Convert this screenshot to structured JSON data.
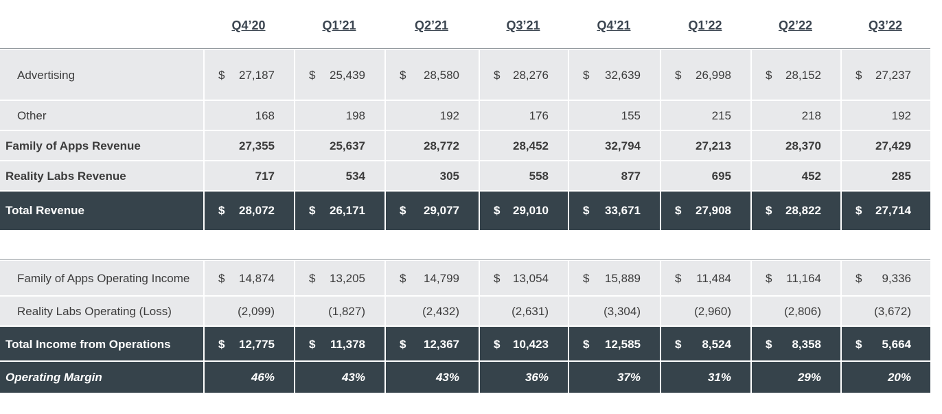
{
  "quarters": [
    "Q4’20",
    "Q1’21",
    "Q2’21",
    "Q3’21",
    "Q4’21",
    "Q1’22",
    "Q2’22",
    "Q3’22"
  ],
  "currency_symbol": "$",
  "revenue_table": {
    "rows": [
      {
        "label": "Advertising",
        "style": "sub",
        "dollar": true,
        "values": [
          "27,187",
          "25,439",
          "28,580",
          "28,276",
          "32,639",
          "26,998",
          "28,152",
          "27,237"
        ]
      },
      {
        "label": "Other",
        "style": "sub",
        "dollar": false,
        "values": [
          "168",
          "198",
          "192",
          "176",
          "155",
          "215",
          "218",
          "192"
        ]
      },
      {
        "label": "Family of Apps Revenue",
        "style": "bold",
        "dollar": false,
        "values": [
          "27,355",
          "25,637",
          "28,772",
          "28,452",
          "32,794",
          "27,213",
          "28,370",
          "27,429"
        ]
      },
      {
        "label": "Reality Labs Revenue",
        "style": "bold",
        "dollar": false,
        "values": [
          "717",
          "534",
          "305",
          "558",
          "877",
          "695",
          "452",
          "285"
        ]
      },
      {
        "label": "Total Revenue",
        "style": "total",
        "dollar": true,
        "values": [
          "28,072",
          "26,171",
          "29,077",
          "29,010",
          "33,671",
          "27,908",
          "28,822",
          "27,714"
        ]
      }
    ]
  },
  "income_table": {
    "rows": [
      {
        "label": "Family of Apps Operating Income",
        "style": "sub",
        "dollar": true,
        "values": [
          "14,874",
          "13,205",
          "14,799",
          "13,054",
          "15,889",
          "11,484",
          "11,164",
          "9,336"
        ]
      },
      {
        "label": "Reality Labs Operating (Loss)",
        "style": "sub",
        "dollar": false,
        "values": [
          "(2,099)",
          "(1,827)",
          "(2,432)",
          "(2,631)",
          "(3,304)",
          "(2,960)",
          "(2,806)",
          "(3,672)"
        ]
      },
      {
        "label": "Total Income from Operations",
        "style": "total",
        "dollar": true,
        "values": [
          "12,775",
          "11,378",
          "12,367",
          "10,423",
          "12,585",
          "8,524",
          "8,358",
          "5,664"
        ]
      },
      {
        "label": "Operating Margin",
        "style": "margin",
        "dollar": false,
        "values": [
          "46%",
          "43%",
          "43%",
          "36%",
          "37%",
          "31%",
          "29%",
          "20%"
        ]
      }
    ]
  },
  "colors": {
    "dark_fill": "#36434b",
    "light_fill": "#e8e9eb",
    "header_text": "#3b4550"
  }
}
